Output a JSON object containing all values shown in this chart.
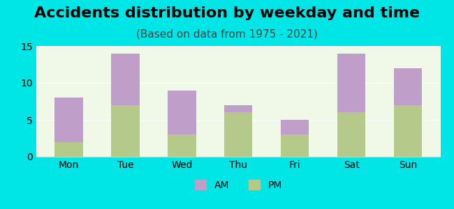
{
  "title": "Accidents distribution by weekday and time",
  "subtitle": "(Based on data from 1975 - 2021)",
  "categories": [
    "Mon",
    "Tue",
    "Wed",
    "Thu",
    "Fri",
    "Sat",
    "Sun"
  ],
  "pm_values": [
    2,
    7,
    3,
    6,
    3,
    6,
    7
  ],
  "am_values": [
    6,
    7,
    6,
    1,
    2,
    8,
    5
  ],
  "am_color": "#bf9fca",
  "pm_color": "#b5c98a",
  "background_color": "#f0f8e8",
  "outer_background": "#00e5e5",
  "ylim": [
    0,
    15
  ],
  "yticks": [
    0,
    5,
    10,
    15
  ],
  "bar_width": 0.5,
  "legend_am": "AM",
  "legend_pm": "PM",
  "title_fontsize": 16,
  "subtitle_fontsize": 11,
  "tick_fontsize": 10
}
